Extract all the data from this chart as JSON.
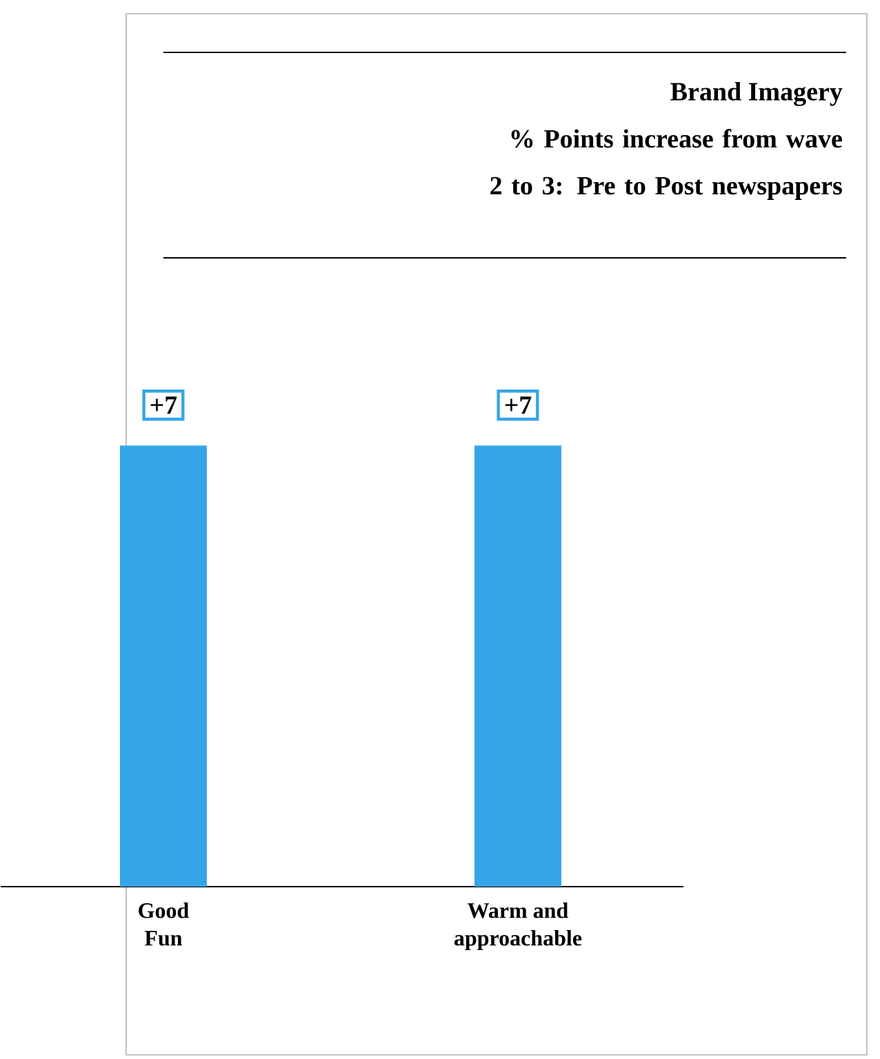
{
  "chart_data": {
    "type": "bar",
    "title": "Brand Imagery",
    "subtitle": "% Points increase from wave 2 to 3: Pre to Post newspapers",
    "categories": [
      "Good Fun",
      "Warm and approachable"
    ],
    "values": [
      7,
      7
    ],
    "color": "#36a5e8",
    "value_labels": [
      "+7",
      "+7"
    ]
  }
}
